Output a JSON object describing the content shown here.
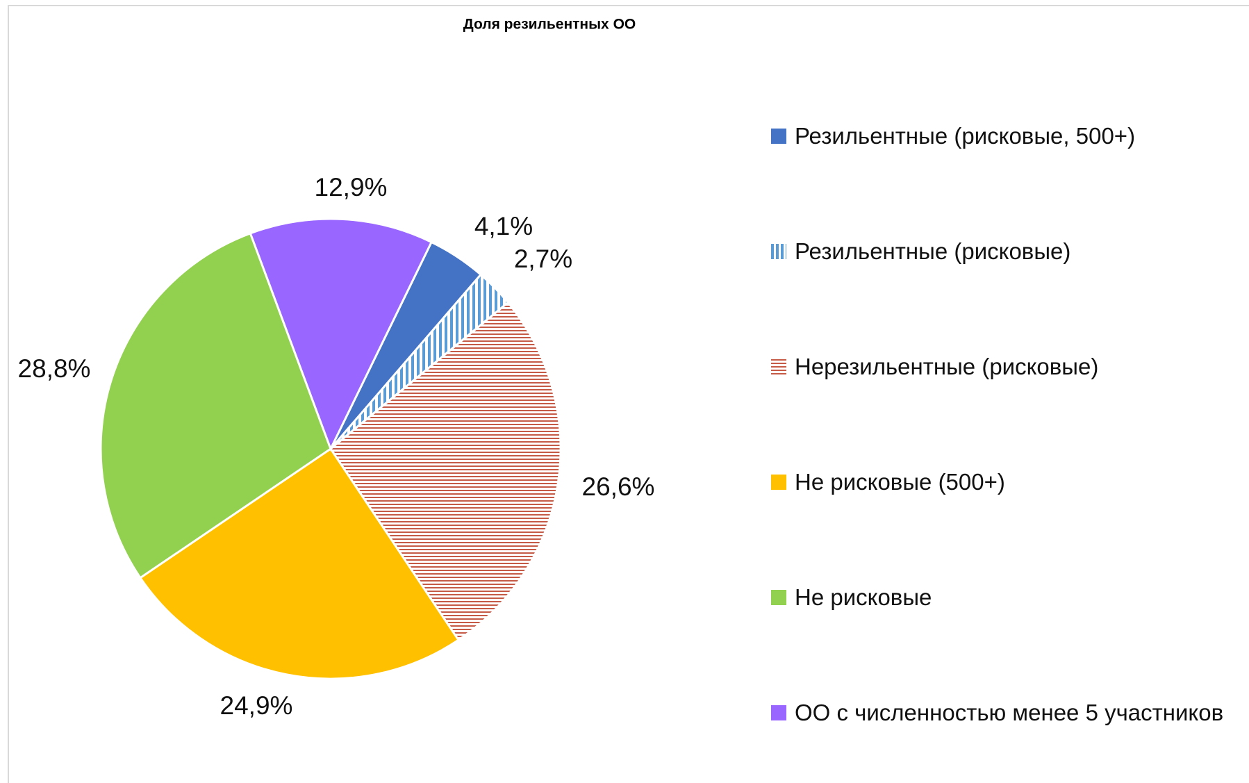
{
  "chart_data": {
    "type": "pie",
    "title": "Доля резильентных ОО",
    "categories": [
      "Резильентные (рисковые, 500+)",
      "Резильентные (рисковые)",
      "Нерезильентные (рисковые)",
      "Не рисковые (500+)",
      "Не рисковые",
      "ОО с численностью менее 5 участников"
    ],
    "values": [
      4.1,
      2.7,
      26.6,
      24.9,
      28.8,
      12.9
    ],
    "value_labels": [
      "4,1%",
      "2,7%",
      "26,6%",
      "24,9%",
      "28,8%",
      "12,9%"
    ],
    "colors": [
      "#4472c4",
      "#5b9bd5",
      "#c55a46",
      "#ffc000",
      "#92d050",
      "#9966ff"
    ],
    "patterns": [
      null,
      "vertical-stripes",
      "horizontal-stripes",
      null,
      null,
      null
    ],
    "legend": "right"
  }
}
